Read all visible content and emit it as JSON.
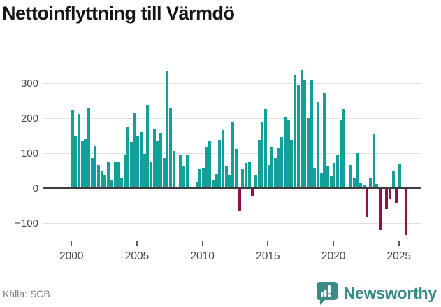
{
  "title": "Nettoinflyttning till Värmdö",
  "source": "Källa: SCB",
  "brand": {
    "name": "Newsworthy",
    "icon": "newsworthy-bubble-chart-icon"
  },
  "colors": {
    "positive": "#14a098",
    "negative": "#8e1249",
    "title": "#161616",
    "zero_line": "#3c3c3c",
    "gridline": "#e4e0e0",
    "tick_label": "#484848",
    "source_text": "#7c7c7c",
    "brand_teal": "#3a8b85",
    "background": "#ffffff"
  },
  "chart_data": {
    "type": "bar",
    "title": "Nettoinflyttning till Värmdö",
    "series_name": "Nettoinflyttning per kvartal",
    "unit": "personer",
    "xlabel": "",
    "ylabel": "",
    "x_tick_labels": [
      "2000",
      "2005",
      "2010",
      "2015",
      "2020",
      "2025"
    ],
    "x_tick_years": [
      2000,
      2005,
      2010,
      2015,
      2020,
      2025
    ],
    "y_tick_labels": [
      "300",
      "200",
      "100",
      "0",
      "−100"
    ],
    "y_ticks": [
      300,
      200,
      100,
      0,
      -100
    ],
    "ylim": [
      -150,
      355
    ],
    "grid": "horizontal",
    "legend": "none",
    "start_quarter": "2000Q1",
    "end_quarter": "2025Q3",
    "quarters": [
      "2000Q1",
      "2000Q2",
      "2000Q3",
      "2000Q4",
      "2001Q1",
      "2001Q2",
      "2001Q3",
      "2001Q4",
      "2002Q1",
      "2002Q2",
      "2002Q3",
      "2002Q4",
      "2003Q1",
      "2003Q2",
      "2003Q3",
      "2003Q4",
      "2004Q1",
      "2004Q2",
      "2004Q3",
      "2004Q4",
      "2005Q1",
      "2005Q2",
      "2005Q3",
      "2005Q4",
      "2006Q1",
      "2006Q2",
      "2006Q3",
      "2006Q4",
      "2007Q1",
      "2007Q2",
      "2007Q3",
      "2007Q4",
      "2008Q1",
      "2008Q2",
      "2008Q3",
      "2008Q4",
      "2009Q1",
      "2009Q2",
      "2009Q3",
      "2009Q4",
      "2010Q1",
      "2010Q2",
      "2010Q3",
      "2010Q4",
      "2011Q1",
      "2011Q2",
      "2011Q3",
      "2011Q4",
      "2012Q1",
      "2012Q2",
      "2012Q3",
      "2012Q4",
      "2013Q1",
      "2013Q2",
      "2013Q3",
      "2013Q4",
      "2014Q1",
      "2014Q2",
      "2014Q3",
      "2014Q4",
      "2015Q1",
      "2015Q2",
      "2015Q3",
      "2015Q4",
      "2016Q1",
      "2016Q2",
      "2016Q3",
      "2016Q4",
      "2017Q1",
      "2017Q2",
      "2017Q3",
      "2017Q4",
      "2018Q1",
      "2018Q2",
      "2018Q3",
      "2018Q4",
      "2019Q1",
      "2019Q2",
      "2019Q3",
      "2019Q4",
      "2020Q1",
      "2020Q2",
      "2020Q3",
      "2020Q4",
      "2021Q1",
      "2021Q2",
      "2021Q3",
      "2021Q4",
      "2022Q1",
      "2022Q2",
      "2022Q3",
      "2022Q4",
      "2023Q1",
      "2023Q2",
      "2023Q3",
      "2023Q4",
      "2024Q1",
      "2024Q2",
      "2024Q3",
      "2024Q4",
      "2025Q1",
      "2025Q2",
      "2025Q3"
    ],
    "values": [
      225,
      148,
      212,
      137,
      140,
      230,
      86,
      120,
      66,
      50,
      38,
      74,
      22,
      74,
      74,
      28,
      94,
      176,
      132,
      214,
      148,
      160,
      98,
      238,
      74,
      170,
      134,
      158,
      86,
      334,
      228,
      106,
      2,
      94,
      62,
      96,
      2,
      0,
      18,
      54,
      58,
      118,
      134,
      22,
      40,
      138,
      166,
      62,
      38,
      190,
      112,
      -66,
      54,
      72,
      76,
      -22,
      38,
      138,
      188,
      226,
      66,
      118,
      86,
      114,
      146,
      202,
      194,
      138,
      324,
      294,
      338,
      310,
      200,
      308,
      58,
      246,
      42,
      272,
      65,
      35,
      72,
      94,
      196,
      226,
      0,
      66,
      30,
      100,
      14,
      8,
      -83,
      30,
      154,
      12,
      -120,
      0,
      -60,
      -30,
      50,
      -42,
      68,
      0,
      -134
    ]
  }
}
